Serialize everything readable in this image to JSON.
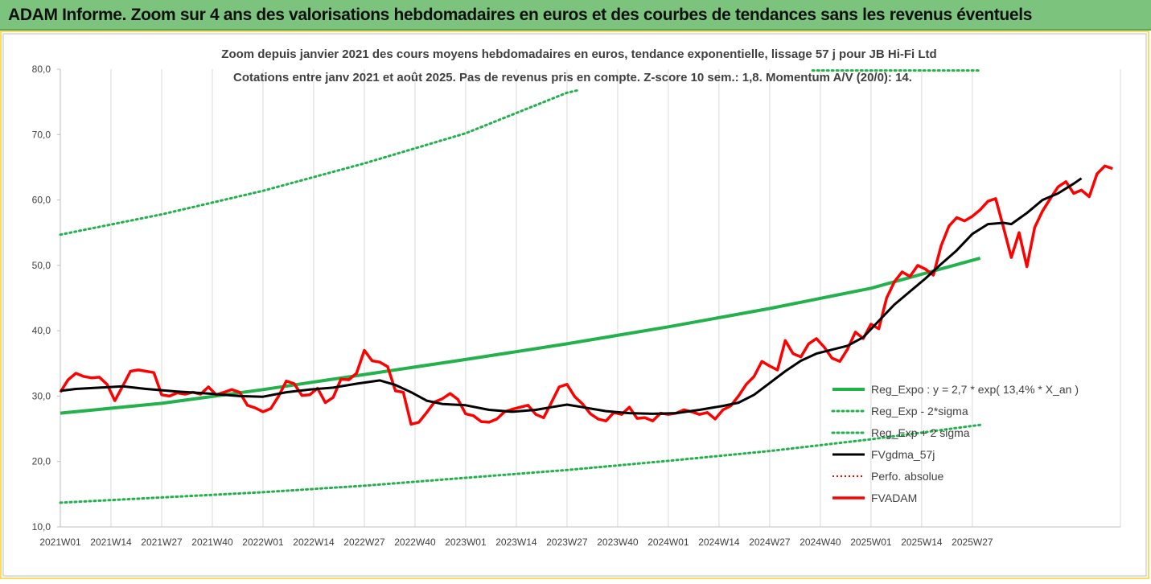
{
  "header": {
    "banner": "ADAM Informe. Zoom sur 4 ans des valorisations hebdomadaires en euros et des courbes de tendances sans les revenus éventuels"
  },
  "chart_data": {
    "type": "line",
    "title": "Zoom depuis janvier 2021 des cours moyens hebdomadaires en euros, tendance exponentielle, lissage 57 j pour JB Hi-Fi Ltd",
    "subtitle": "Cotations entre janv 2021 et août 2025.  Pas de revenus pris en compte. Z-score 10 sem.: 1,8. Momentum A/V (20/0): 14.",
    "xlabel": "",
    "ylabel": "",
    "ylim": [
      10,
      80
    ],
    "yticks": [
      "80,0",
      "70,0",
      "60,0",
      "50,0",
      "40,0",
      "30,0",
      "20,0",
      "10,0"
    ],
    "xticks": [
      "2021W01",
      "2021W14",
      "2021W27",
      "2021W40",
      "2022W01",
      "2022W14",
      "2022W27",
      "2022W40",
      "2023W01",
      "2023W14",
      "2023W27",
      "2023W40",
      "2024W01",
      "2024W14",
      "2024W27",
      "2024W40",
      "2025W01",
      "2025W14",
      "2025W27"
    ],
    "x_tick_step_weeks": 13,
    "n_weeks": 236,
    "grid": "vertical",
    "legend_position": "bottom-right",
    "colors": {
      "reg_expo": "#22b14c",
      "sigma": "#22b14c",
      "fvgdma": "#000000",
      "perfo": "#ff0000",
      "fvadam": "#ff0000",
      "grid": "#d9d9d9",
      "frame": "#ffd966"
    },
    "series": [
      {
        "name": "Reg_Expo : y = 2,7 * exp( 13,4% *  X_an )",
        "key": "reg_expo",
        "style": "solid",
        "points": [
          [
            0,
            27.4
          ],
          [
            26,
            28.9
          ],
          [
            52,
            31.0
          ],
          [
            78,
            33.3
          ],
          [
            104,
            35.6
          ],
          [
            130,
            38.0
          ],
          [
            156,
            40.6
          ],
          [
            182,
            43.4
          ],
          [
            208,
            46.5
          ],
          [
            236,
            51.1
          ]
        ]
      },
      {
        "name": "Reg_Exp - 2*sigma",
        "key": "sigma",
        "style": "dotted",
        "points": [
          [
            0,
            13.7
          ],
          [
            26,
            14.5
          ],
          [
            52,
            15.3
          ],
          [
            78,
            16.3
          ],
          [
            104,
            17.5
          ],
          [
            130,
            18.7
          ],
          [
            156,
            20.1
          ],
          [
            182,
            21.6
          ],
          [
            208,
            23.4
          ],
          [
            236,
            25.6
          ]
        ]
      },
      {
        "name": "Reg_Exp + 2 sigma",
        "key": "sigma",
        "style": "dotted",
        "points": [
          [
            0,
            54.7
          ],
          [
            26,
            57.8
          ],
          [
            52,
            61.4
          ],
          [
            78,
            65.6
          ],
          [
            104,
            70.2
          ],
          [
            130,
            76.4
          ],
          [
            133,
            76.8
          ]
        ],
        "segment2": [
          [
            193,
            79.8
          ],
          [
            236,
            79.8
          ]
        ]
      },
      {
        "name": "FVgdma_57j",
        "key": "fvgdma",
        "style": "solid",
        "points": [
          [
            0,
            30.8
          ],
          [
            4,
            31.1
          ],
          [
            10,
            31.3
          ],
          [
            16,
            31.5
          ],
          [
            22,
            31.1
          ],
          [
            30,
            30.7
          ],
          [
            38,
            30.4
          ],
          [
            46,
            30.0
          ],
          [
            52,
            29.9
          ],
          [
            58,
            30.6
          ],
          [
            64,
            31.0
          ],
          [
            70,
            31.3
          ],
          [
            76,
            31.9
          ],
          [
            82,
            32.4
          ],
          [
            86,
            31.7
          ],
          [
            90,
            30.6
          ],
          [
            94,
            29.3
          ],
          [
            98,
            28.8
          ],
          [
            104,
            28.6
          ],
          [
            110,
            27.9
          ],
          [
            116,
            27.6
          ],
          [
            122,
            27.9
          ],
          [
            126,
            28.3
          ],
          [
            130,
            28.7
          ],
          [
            134,
            28.3
          ],
          [
            140,
            27.7
          ],
          [
            146,
            27.4
          ],
          [
            152,
            27.3
          ],
          [
            158,
            27.4
          ],
          [
            164,
            27.9
          ],
          [
            170,
            28.5
          ],
          [
            174,
            29.0
          ],
          [
            178,
            30.2
          ],
          [
            182,
            32.0
          ],
          [
            186,
            33.8
          ],
          [
            190,
            35.4
          ],
          [
            194,
            36.5
          ],
          [
            198,
            37.1
          ],
          [
            202,
            37.7
          ],
          [
            206,
            39.0
          ],
          [
            210,
            41.5
          ],
          [
            214,
            44.0
          ],
          [
            218,
            46.0
          ],
          [
            222,
            48.0
          ],
          [
            226,
            50.2
          ],
          [
            230,
            52.3
          ],
          [
            234,
            54.8
          ],
          [
            238,
            56.3
          ],
          [
            242,
            56.5
          ],
          [
            244,
            56.3
          ],
          [
            248,
            58.0
          ],
          [
            252,
            60.0
          ],
          [
            256,
            61.0
          ],
          [
            260,
            62.5
          ],
          [
            262,
            63.3
          ]
        ]
      },
      {
        "name": "Perfo. absolue",
        "key": "perfo",
        "style": "dotted",
        "points": []
      },
      {
        "name": "FVADAM",
        "key": "fvadam",
        "style": "solid",
        "points": [
          [
            0,
            30.6
          ],
          [
            2,
            32.5
          ],
          [
            4,
            33.5
          ],
          [
            6,
            33.0
          ],
          [
            8,
            32.8
          ],
          [
            10,
            32.9
          ],
          [
            12,
            31.8
          ],
          [
            14,
            29.3
          ],
          [
            16,
            31.5
          ],
          [
            18,
            33.8
          ],
          [
            20,
            34.0
          ],
          [
            22,
            33.8
          ],
          [
            24,
            33.6
          ],
          [
            26,
            30.2
          ],
          [
            28,
            30.0
          ],
          [
            30,
            30.5
          ],
          [
            32,
            30.3
          ],
          [
            34,
            30.6
          ],
          [
            36,
            30.3
          ],
          [
            38,
            31.4
          ],
          [
            40,
            30.2
          ],
          [
            42,
            30.6
          ],
          [
            44,
            31.0
          ],
          [
            46,
            30.6
          ],
          [
            48,
            28.6
          ],
          [
            50,
            28.2
          ],
          [
            52,
            27.6
          ],
          [
            54,
            28.1
          ],
          [
            56,
            30.0
          ],
          [
            58,
            32.3
          ],
          [
            60,
            31.9
          ],
          [
            62,
            30.1
          ],
          [
            64,
            30.2
          ],
          [
            66,
            31.2
          ],
          [
            68,
            29.0
          ],
          [
            70,
            29.8
          ],
          [
            72,
            32.6
          ],
          [
            74,
            32.5
          ],
          [
            76,
            33.5
          ],
          [
            78,
            37.0
          ],
          [
            80,
            35.4
          ],
          [
            82,
            35.2
          ],
          [
            84,
            34.5
          ],
          [
            86,
            30.8
          ],
          [
            88,
            30.6
          ],
          [
            90,
            25.7
          ],
          [
            92,
            26.0
          ],
          [
            94,
            27.5
          ],
          [
            96,
            29.1
          ],
          [
            98,
            29.6
          ],
          [
            100,
            30.4
          ],
          [
            102,
            29.5
          ],
          [
            104,
            27.3
          ],
          [
            106,
            27.0
          ],
          [
            108,
            26.1
          ],
          [
            110,
            26.0
          ],
          [
            112,
            26.5
          ],
          [
            114,
            27.6
          ],
          [
            116,
            28.0
          ],
          [
            118,
            28.3
          ],
          [
            120,
            28.6
          ],
          [
            122,
            27.2
          ],
          [
            124,
            26.7
          ],
          [
            126,
            29.0
          ],
          [
            128,
            31.4
          ],
          [
            130,
            31.8
          ],
          [
            132,
            29.9
          ],
          [
            134,
            28.8
          ],
          [
            136,
            27.3
          ],
          [
            138,
            26.5
          ],
          [
            140,
            26.2
          ],
          [
            142,
            27.5
          ],
          [
            144,
            27.2
          ],
          [
            146,
            28.3
          ],
          [
            148,
            26.6
          ],
          [
            150,
            26.7
          ],
          [
            152,
            26.2
          ],
          [
            154,
            27.4
          ],
          [
            156,
            27.2
          ],
          [
            158,
            27.4
          ],
          [
            160,
            27.9
          ],
          [
            162,
            27.6
          ],
          [
            164,
            27.2
          ],
          [
            166,
            27.5
          ],
          [
            168,
            26.5
          ],
          [
            170,
            27.9
          ],
          [
            172,
            28.5
          ],
          [
            174,
            30.0
          ],
          [
            176,
            31.8
          ],
          [
            178,
            33.0
          ],
          [
            180,
            35.3
          ],
          [
            182,
            34.6
          ],
          [
            184,
            34.0
          ],
          [
            186,
            38.5
          ],
          [
            188,
            36.5
          ],
          [
            190,
            36.0
          ],
          [
            192,
            38.0
          ],
          [
            194,
            38.8
          ],
          [
            196,
            37.5
          ],
          [
            198,
            35.8
          ],
          [
            200,
            35.3
          ],
          [
            202,
            37.2
          ],
          [
            204,
            39.8
          ],
          [
            206,
            38.8
          ],
          [
            208,
            41.0
          ],
          [
            210,
            40.3
          ],
          [
            212,
            45.0
          ],
          [
            214,
            47.5
          ],
          [
            216,
            49.0
          ],
          [
            218,
            48.3
          ],
          [
            220,
            50.0
          ],
          [
            222,
            49.4
          ],
          [
            224,
            48.5
          ],
          [
            226,
            53.0
          ],
          [
            228,
            56.0
          ],
          [
            230,
            57.3
          ],
          [
            232,
            56.8
          ],
          [
            234,
            57.5
          ],
          [
            236,
            58.5
          ],
          [
            238,
            59.8
          ],
          [
            240,
            60.2
          ],
          [
            242,
            55.8
          ],
          [
            244,
            51.2
          ],
          [
            246,
            55.0
          ],
          [
            248,
            49.8
          ],
          [
            250,
            55.8
          ],
          [
            252,
            58.3
          ],
          [
            254,
            60.2
          ],
          [
            256,
            62.0
          ],
          [
            258,
            62.8
          ],
          [
            260,
            61.0
          ],
          [
            262,
            61.5
          ],
          [
            264,
            60.5
          ],
          [
            266,
            64.0
          ],
          [
            268,
            65.2
          ],
          [
            270,
            64.8
          ]
        ]
      }
    ]
  }
}
